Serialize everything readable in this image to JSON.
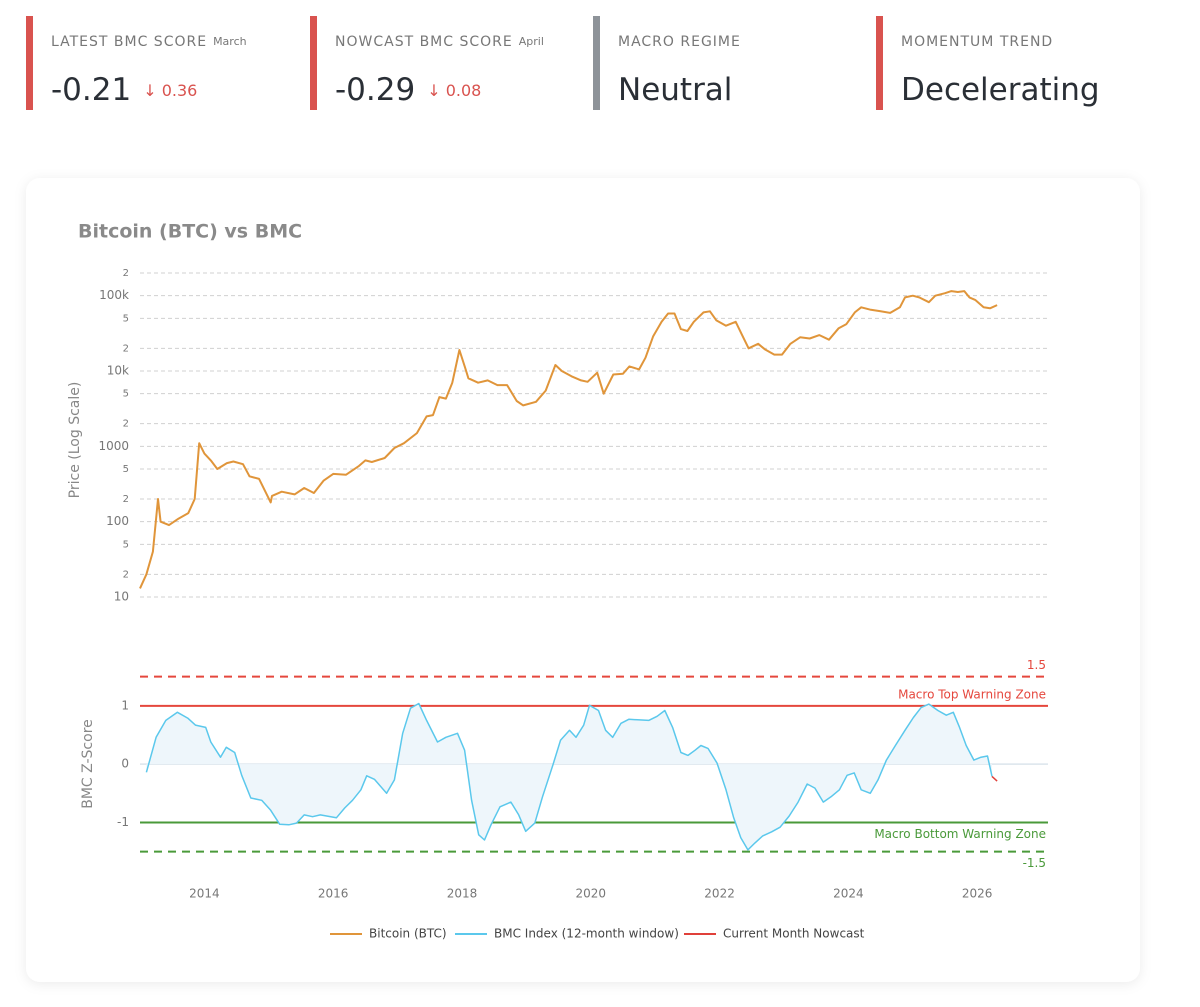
{
  "cards": [
    {
      "label": "LATEST BMC SCORE",
      "period": "March",
      "value": "-0.21",
      "change": "↓ 0.36",
      "accent": "#d9534f"
    },
    {
      "label": "NOWCAST BMC SCORE",
      "period": "April",
      "value": "-0.29",
      "change": "↓ 0.08",
      "accent": "#d9534f"
    },
    {
      "label": "MACRO REGIME",
      "value": "Neutral",
      "accent": "#8e9399"
    },
    {
      "label": "MOMENTUM TREND",
      "value": "Decelerating",
      "accent": "#d9534f"
    }
  ],
  "chart_data": [
    {
      "type": "line",
      "title": "Bitcoin (BTC) vs BMC",
      "y_label": "Price (Log Scale)",
      "log_scale": true,
      "grid": true,
      "xlim": [
        2013.0,
        2027.1
      ],
      "ylim": [
        10,
        200000
      ],
      "yticks": [
        10,
        {
          "value": 20,
          "label": "2"
        },
        {
          "value": 50,
          "label": "5"
        },
        100,
        {
          "value": 200,
          "label": "2"
        },
        {
          "value": 500,
          "label": "5"
        },
        1000,
        {
          "value": 2000,
          "label": "2"
        },
        {
          "value": 5000,
          "label": "5"
        },
        {
          "value": 10000,
          "label": "10k"
        },
        {
          "value": 20000,
          "label": "2"
        },
        {
          "value": 50000,
          "label": "5"
        },
        {
          "value": 100000,
          "label": "100k"
        },
        {
          "value": 200000,
          "label": "2"
        }
      ],
      "series": [
        {
          "name": "Bitcoin (BTC)",
          "color": "#e0953a",
          "x": [
            2013.0,
            2013.1,
            2013.2,
            2013.28,
            2013.32,
            2013.45,
            2013.6,
            2013.75,
            2013.85,
            2013.92,
            2014.0,
            2014.1,
            2014.2,
            2014.35,
            2014.45,
            2014.6,
            2014.7,
            2014.85,
            2015.03,
            2015.05,
            2015.2,
            2015.4,
            2015.55,
            2015.7,
            2015.85,
            2016.0,
            2016.2,
            2016.4,
            2016.5,
            2016.6,
            2016.8,
            2016.95,
            2017.1,
            2017.3,
            2017.45,
            2017.55,
            2017.65,
            2017.75,
            2017.85,
            2017.96,
            2018.05,
            2018.1,
            2018.25,
            2018.4,
            2018.55,
            2018.7,
            2018.85,
            2018.95,
            2019.15,
            2019.3,
            2019.45,
            2019.55,
            2019.7,
            2019.85,
            2019.95,
            2020.1,
            2020.2,
            2020.35,
            2020.5,
            2020.6,
            2020.75,
            2020.85,
            2020.97,
            2021.1,
            2021.2,
            2021.3,
            2021.4,
            2021.5,
            2021.6,
            2021.75,
            2021.85,
            2021.95,
            2022.1,
            2022.25,
            2022.35,
            2022.45,
            2022.6,
            2022.7,
            2022.85,
            2022.97,
            2023.1,
            2023.25,
            2023.4,
            2023.55,
            2023.7,
            2023.85,
            2023.97,
            2024.1,
            2024.2,
            2024.35,
            2024.5,
            2024.65,
            2024.8,
            2024.88,
            2025.0,
            2025.1,
            2025.25,
            2025.35,
            2025.5,
            2025.6,
            2025.7,
            2025.8,
            2025.88,
            2025.97,
            2026.1,
            2026.2,
            2026.31
          ],
          "values": [
            13,
            20,
            40,
            200,
            100,
            90,
            110,
            130,
            200,
            1100,
            800,
            650,
            500,
            600,
            630,
            580,
            400,
            370,
            180,
            220,
            250,
            230,
            280,
            240,
            350,
            430,
            420,
            550,
            650,
            620,
            700,
            950,
            1100,
            1500,
            2500,
            2600,
            4500,
            4300,
            7000,
            19000,
            11000,
            8000,
            7000,
            7500,
            6500,
            6500,
            4000,
            3500,
            3900,
            5500,
            12000,
            10000,
            8500,
            7500,
            7200,
            9500,
            5000,
            9000,
            9200,
            11500,
            10500,
            15000,
            29000,
            45000,
            58000,
            58000,
            36000,
            34000,
            45000,
            60000,
            62000,
            47000,
            40000,
            45000,
            30000,
            20000,
            23000,
            19500,
            16500,
            16500,
            23000,
            28000,
            27000,
            30000,
            26000,
            37000,
            42000,
            60000,
            70000,
            65000,
            62000,
            59000,
            70000,
            95000,
            100000,
            95000,
            82000,
            100000,
            108000,
            115000,
            112000,
            115000,
            95000,
            88000,
            70000,
            68000,
            75000
          ]
        }
      ]
    },
    {
      "type": "line",
      "y_label": "BMC Z-Score",
      "xlim": [
        2013.0,
        2027.1
      ],
      "ylim": [
        -1.9,
        1.7
      ],
      "xticks": [
        2014,
        2016,
        2018,
        2020,
        2022,
        2024,
        2026
      ],
      "yticks": [
        -1,
        0,
        1
      ],
      "reference_lines": [
        {
          "value": 1.5,
          "color": "#e5473d",
          "dashed": true
        },
        {
          "value": 1,
          "label": "Macro Top Warning Zone",
          "color": "#e5473d",
          "dashed": false
        },
        {
          "value": -1,
          "label": "Macro Bottom Warning Zone",
          "color": "#4a9a3a",
          "dashed": false
        },
        {
          "value": -1.5,
          "color": "#4a9a3a",
          "dashed": true
        }
      ],
      "series": [
        {
          "name": "BMC Index (12-month window)",
          "color": "#5bc8ec",
          "fill": "#eef6fb",
          "x": [
            2013.1,
            2013.25,
            2013.4,
            2013.58,
            2013.74,
            2013.86,
            2014.02,
            2014.1,
            2014.25,
            2014.34,
            2014.47,
            2014.58,
            2014.72,
            2014.89,
            2015.03,
            2015.17,
            2015.31,
            2015.43,
            2015.55,
            2015.68,
            2015.8,
            2016.05,
            2016.18,
            2016.3,
            2016.43,
            2016.52,
            2016.64,
            2016.83,
            2016.95,
            2017.08,
            2017.2,
            2017.33,
            2017.45,
            2017.62,
            2017.75,
            2017.93,
            2018.04,
            2018.15,
            2018.26,
            2018.35,
            2018.45,
            2018.59,
            2018.76,
            2018.88,
            2018.99,
            2019.13,
            2019.25,
            2019.41,
            2019.53,
            2019.67,
            2019.77,
            2019.89,
            2019.98,
            2020.12,
            2020.23,
            2020.34,
            2020.47,
            2020.59,
            2020.9,
            2021.03,
            2021.15,
            2021.27,
            2021.4,
            2021.51,
            2021.62,
            2021.71,
            2021.82,
            2021.96,
            2022.1,
            2022.22,
            2022.33,
            2022.44,
            2022.55,
            2022.67,
            2022.81,
            2022.94,
            2023.08,
            2023.22,
            2023.36,
            2023.48,
            2023.61,
            2023.73,
            2023.86,
            2023.98,
            2024.09,
            2024.2,
            2024.34,
            2024.46,
            2024.59,
            2024.73,
            2024.88,
            2025.01,
            2025.13,
            2025.25,
            2025.39,
            2025.52,
            2025.63,
            2025.72,
            2025.83,
            2025.95,
            2026.06,
            2026.16,
            2026.23
          ],
          "values": [
            -0.14,
            0.46,
            0.75,
            0.89,
            0.79,
            0.67,
            0.63,
            0.38,
            0.12,
            0.29,
            0.2,
            -0.19,
            -0.58,
            -0.62,
            -0.79,
            -1.03,
            -1.04,
            -1.01,
            -0.87,
            -0.9,
            -0.87,
            -0.92,
            -0.75,
            -0.62,
            -0.44,
            -0.2,
            -0.26,
            -0.5,
            -0.27,
            0.53,
            0.96,
            1.04,
            0.75,
            0.38,
            0.46,
            0.53,
            0.24,
            -0.62,
            -1.21,
            -1.3,
            -1.04,
            -0.73,
            -0.65,
            -0.87,
            -1.15,
            -1.01,
            -0.56,
            -0.02,
            0.41,
            0.58,
            0.46,
            0.67,
            1.01,
            0.92,
            0.58,
            0.46,
            0.7,
            0.77,
            0.75,
            0.82,
            0.92,
            0.63,
            0.2,
            0.15,
            0.24,
            0.32,
            0.27,
            0.02,
            -0.44,
            -0.92,
            -1.26,
            -1.47,
            -1.35,
            -1.23,
            -1.16,
            -1.08,
            -0.89,
            -0.65,
            -0.34,
            -0.41,
            -0.65,
            -0.56,
            -0.44,
            -0.19,
            -0.15,
            -0.44,
            -0.5,
            -0.27,
            0.07,
            0.32,
            0.58,
            0.8,
            0.97,
            1.03,
            0.92,
            0.84,
            0.89,
            0.65,
            0.32,
            0.07,
            0.12,
            0.14,
            -0.21
          ]
        },
        {
          "name": "Current Month Nowcast",
          "color": "#e0403a",
          "x": [
            2026.23,
            2026.31
          ],
          "values": [
            -0.21,
            -0.29
          ]
        }
      ]
    }
  ]
}
